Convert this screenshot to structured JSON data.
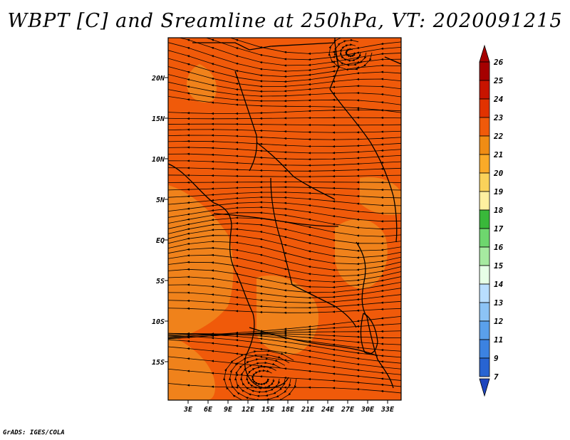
{
  "title": "WBPT [C] and Sreamline at 250hPa, VT: 2020091215",
  "credit": "GrADS: IGES/COLA",
  "map": {
    "lat_labels": [
      "20N",
      "15N",
      "10N",
      "5N",
      "EQ",
      "5S",
      "10S",
      "15S"
    ],
    "lon_labels": [
      "3E",
      "6E",
      "9E",
      "12E",
      "15E",
      "18E",
      "21E",
      "24E",
      "27E",
      "30E",
      "33E"
    ],
    "background_color": "#f05a0a",
    "warm_patch_color": "#f08a1e"
  },
  "colorbar": {
    "labels": [
      "26",
      "25",
      "24",
      "23",
      "22",
      "21",
      "20",
      "19",
      "18",
      "17",
      "16",
      "15",
      "14",
      "13",
      "12",
      "11",
      "9",
      "7"
    ],
    "colors": [
      "#a50000",
      "#c81400",
      "#e13200",
      "#f05a0a",
      "#f08c14",
      "#faaa28",
      "#fad25a",
      "#fff0a0",
      "#39b83a",
      "#6ed66e",
      "#a6eaa0",
      "#e6ffe6",
      "#b9deff",
      "#8cc3f5",
      "#5aa0eb",
      "#3c82e1",
      "#2864d2",
      "#1e46be"
    ],
    "top_arrow_color": "#a50000",
    "bottom_arrow_color": "#1e46be"
  }
}
